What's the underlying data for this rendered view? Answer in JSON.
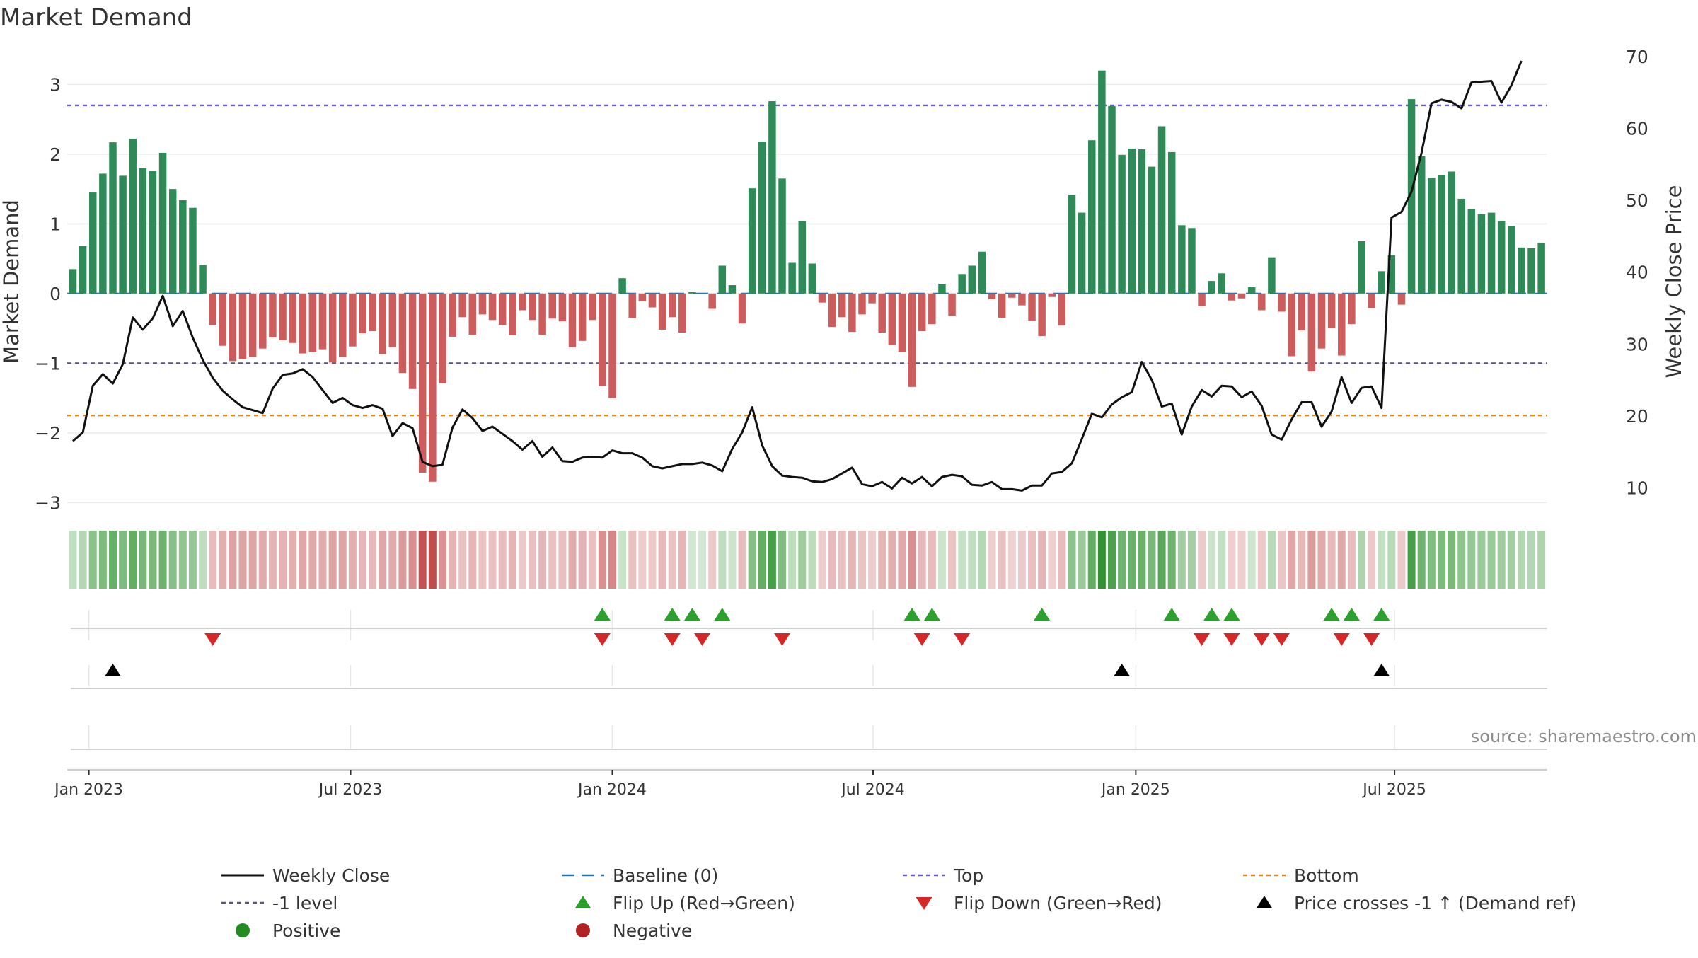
{
  "chart_data": {
    "type": "bar",
    "title": "Market Demand",
    "ylabel_left": "Market Demand",
    "ylabel_right": "Weekly Close Price",
    "ylim_left": [
      -3.2,
      3.4
    ],
    "ylim_right": [
      6,
      70
    ],
    "yticks_left": [
      {
        "v": 3,
        "label": "3"
      },
      {
        "v": 2,
        "label": "2"
      },
      {
        "v": 1,
        "label": "1"
      },
      {
        "v": 0,
        "label": "0"
      },
      {
        "v": -1,
        "label": "−1"
      },
      {
        "v": -2,
        "label": "−2"
      },
      {
        "v": -3,
        "label": "−3"
      }
    ],
    "yticks_right": [
      {
        "v": 70,
        "label": "70"
      },
      {
        "v": 60,
        "label": "60"
      },
      {
        "v": 50,
        "label": "50"
      },
      {
        "v": 40,
        "label": "40"
      },
      {
        "v": 30,
        "label": "30"
      },
      {
        "v": 20,
        "label": "20"
      },
      {
        "v": 10,
        "label": "10"
      }
    ],
    "xticks": [
      {
        "week": 1.6,
        "label": "Jan 2023"
      },
      {
        "week": 27.8,
        "label": "Jul 2023"
      },
      {
        "week": 54,
        "label": "Jan 2024"
      },
      {
        "week": 80.1,
        "label": "Jul 2024"
      },
      {
        "week": 106.4,
        "label": "Jan 2025"
      },
      {
        "week": 132.3,
        "label": "Jul 2025"
      }
    ],
    "top_level": 2.7,
    "bottom_level": -1.75,
    "minus_one_level": -1,
    "demand": [
      0.35,
      0.68,
      1.45,
      1.72,
      2.17,
      1.69,
      2.22,
      1.8,
      1.76,
      2.02,
      1.5,
      1.34,
      1.23,
      0.41,
      -0.45,
      -0.75,
      -0.97,
      -0.94,
      -0.91,
      -0.79,
      -0.63,
      -0.67,
      -0.71,
      -0.86,
      -0.84,
      -0.8,
      -0.99,
      -0.91,
      -0.76,
      -0.57,
      -0.54,
      -0.87,
      -0.77,
      -1.14,
      -1.37,
      -2.57,
      -2.7,
      -1.29,
      -0.62,
      -0.34,
      -0.59,
      -0.3,
      -0.38,
      -0.45,
      -0.6,
      -0.24,
      -0.38,
      -0.59,
      -0.36,
      -0.4,
      -0.77,
      -0.68,
      -0.38,
      -1.33,
      -1.5,
      0.22,
      -0.35,
      -0.11,
      -0.2,
      -0.52,
      -0.34,
      -0.56,
      0.02,
      0.0,
      -0.22,
      0.4,
      0.12,
      -0.43,
      1.51,
      2.18,
      2.76,
      1.65,
      0.44,
      1.04,
      0.43,
      -0.13,
      -0.48,
      -0.34,
      -0.55,
      -0.3,
      -0.14,
      -0.56,
      -0.74,
      -0.84,
      -1.34,
      -0.54,
      -0.44,
      0.14,
      -0.32,
      0.28,
      0.4,
      0.6,
      -0.08,
      -0.35,
      -0.06,
      -0.17,
      -0.39,
      -0.61,
      -0.05,
      -0.46,
      1.42,
      1.16,
      2.2,
      3.2,
      2.69,
      1.99,
      2.08,
      2.07,
      1.82,
      2.4,
      2.03,
      0.98,
      0.94,
      -0.18,
      0.18,
      0.29,
      -0.1,
      -0.07,
      0.09,
      -0.24,
      0.52,
      -0.26,
      -0.9,
      -0.53,
      -1.12,
      -0.79,
      -0.5,
      -0.89,
      -0.44,
      0.75,
      -0.21,
      0.32,
      0.55,
      -0.16,
      2.79,
      1.97,
      1.66,
      1.7,
      1.75,
      1.36,
      1.21,
      1.14,
      1.16,
      1.04,
      0.97,
      0.66,
      0.65,
      0.73
    ],
    "close": [
      16.5,
      17.7,
      24.2,
      25.8,
      24.5,
      27.2,
      33.7,
      32.0,
      33.6,
      36.7,
      32.5,
      34.6,
      30.9,
      27.8,
      25.3,
      23.5,
      22.3,
      21.2,
      20.8,
      20.4,
      23.8,
      25.7,
      25.9,
      26.5,
      25.4,
      23.6,
      21.8,
      22.5,
      21.5,
      21.1,
      21.5,
      21.0,
      17.2,
      19.0,
      18.3,
      13.6,
      13.0,
      13.2,
      18.4,
      20.9,
      19.7,
      17.9,
      18.5,
      17.5,
      16.5,
      15.3,
      16.5,
      14.3,
      15.6,
      13.7,
      13.6,
      14.2,
      14.3,
      14.2,
      15.2,
      14.8,
      14.8,
      14.2,
      13.0,
      12.7,
      13.0,
      13.3,
      13.3,
      13.5,
      13.1,
      12.3,
      15.4,
      17.7,
      21.2,
      15.9,
      13.0,
      11.7,
      11.5,
      11.4,
      10.9,
      10.8,
      11.2,
      12.0,
      12.8,
      10.5,
      10.2,
      10.8,
      9.9,
      11.4,
      10.6,
      11.5,
      10.2,
      11.5,
      11.8,
      11.6,
      10.4,
      10.3,
      10.8,
      9.8,
      9.8,
      9.6,
      10.3,
      10.3,
      12.0,
      12.2,
      13.4,
      16.8,
      20.3,
      19.8,
      21.6,
      22.6,
      23.3,
      27.5,
      25.0,
      21.3,
      21.7,
      17.4,
      21.3,
      23.6,
      22.7,
      24.2,
      24.1,
      22.6,
      23.4,
      21.4,
      17.4,
      16.7,
      19.5,
      21.9,
      21.9,
      18.5,
      20.6,
      25.4,
      21.8,
      23.9,
      24.1,
      21.1,
      47.6,
      48.4,
      51.2,
      56.6,
      63.5,
      64.0,
      63.7,
      62.8,
      66.4,
      66.5,
      66.6,
      63.6,
      66.0,
      69.4
    ],
    "flip_up_weeks": [
      53,
      60,
      62,
      65,
      84,
      86,
      97,
      110,
      114,
      116,
      126,
      128,
      131
    ],
    "flip_down_weeks": [
      14,
      53,
      60,
      63,
      71,
      85,
      89,
      113,
      116,
      119,
      121,
      127,
      130
    ],
    "price_cross_weeks": [
      4,
      105,
      131
    ],
    "source": "source: sharemaestro.com",
    "legend": [
      {
        "label": "Weekly Close",
        "marker": "line-solid",
        "color": "#111111"
      },
      {
        "label": "Baseline (0)",
        "marker": "line-dashed",
        "color": "#1f77b4"
      },
      {
        "label": "Top",
        "marker": "line-dotted",
        "color": "#6a5acd"
      },
      {
        "label": "Bottom",
        "marker": "line-dotted",
        "color": "#e08a1e"
      },
      {
        "label": "-1 level",
        "marker": "line-dotted",
        "color": "#555577"
      },
      {
        "label": "Flip Up (Red→Green)",
        "marker": "triangle-up",
        "color": "#2ca02c"
      },
      {
        "label": "Flip Down (Green→Red)",
        "marker": "triangle-down",
        "color": "#d62728"
      },
      {
        "label": "Price crosses -1 ↑ (Demand ref)",
        "marker": "triangle-up",
        "color": "#000000"
      },
      {
        "label": "Positive",
        "marker": "circle",
        "color": "#228b22"
      },
      {
        "label": "Negative",
        "marker": "circle",
        "color": "#b22222"
      }
    ]
  },
  "colors": {
    "positive_bar": "#2e8b57",
    "negative_bar": "#cd5c5c",
    "close_line": "#111111",
    "baseline": "#1f77b4",
    "top_line": "#6a5acd",
    "bottom_line": "#e08a1e",
    "minus_one_line": "#555577",
    "flip_up": "#2ca02c",
    "flip_down": "#d62728",
    "cross": "#000000",
    "axis_text": "#333333"
  }
}
